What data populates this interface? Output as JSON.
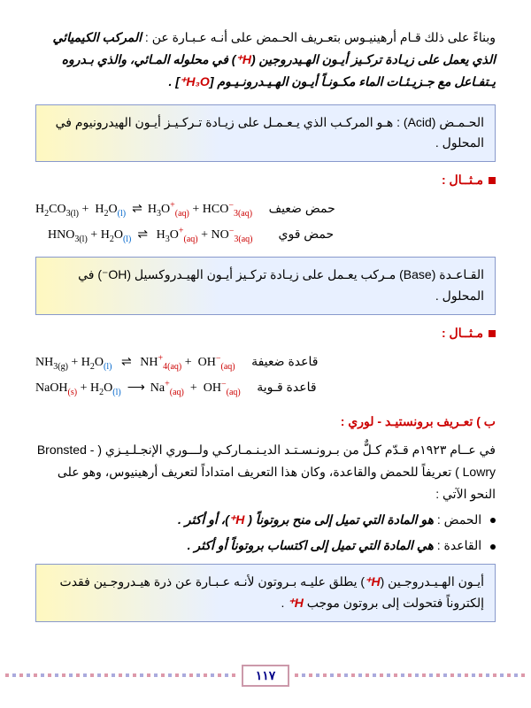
{
  "intro": {
    "line1_a": "وبناءً على ذلك قـام أرهينيـوس بتعـريف الحـمض على أنـه عـبـارة عن : ",
    "line1_b": "المركب الكيميائي الذي يعمل على زيـادة تركـيز أيـون الهـيدروجين (",
    "hplus": "H⁺",
    "line1_c": ") في محلوله المـائي، والذي بـدروه يـتفـاعل مع جـزيـئـات الماء مكـونـاً أيـون الهـيـدرونـيـوم [",
    "h3o": "H₃O⁺",
    "line1_d": "] ."
  },
  "def_acid": "الحـمـض (Acid) : هـو المركـب الذي يـعـمـل على زيـادة تـركـيـز أيـون الهيدرونيوم في المحلول .",
  "example_label": "مـثــال :",
  "eq1": {
    "lhs1": "H₂CO₃(l)",
    "plus": " + ",
    "lhs2": "H₂O(l)",
    "rhs1": "H₃O⁺",
    "rhs1_s": "(aq)",
    "rhs2": "HCO⁻₃",
    "rhs2_s": "(aq)",
    "label": "حمض ضعيف"
  },
  "eq2": {
    "lhs1": "HNO₃(l)",
    "lhs2": "H₂O(l)",
    "rhs1": "H₃O⁺",
    "rhs1_s": "(aq)",
    "rhs2": "NO⁻₃",
    "rhs2_s": "(aq)",
    "label": "حمض قوي"
  },
  "def_base": "القـاعـدة (Base) مـركب يعـمل على زيـادة تركـيز أيـون الهيـدروكسيل (OH⁻) في المحلول .",
  "eq3": {
    "lhs1": "NH₃(g)",
    "lhs2": "H₂O(l)",
    "rhs1": "NH₄⁺",
    "rhs1_s": "(aq)",
    "rhs2": "OH⁻",
    "rhs2_s": "(aq)",
    "label": "قاعدة ضعيفة"
  },
  "eq4": {
    "lhs1": "NaOH(s)",
    "lhs2": "H₂O(l)",
    "rhs1": "Na⁺",
    "rhs1_s": "(aq)",
    "rhs2": "OH⁻",
    "rhs2_s": "(aq)",
    "label": "قاعدة قـوية"
  },
  "section_b": "ب ) تعـريف برونستيـد - لوري :",
  "bronsted_p": "في عــام ١٩٢٣م قـدّم كـلٌّ من بـرونـسـتـد الديـنـمـاركـي ولـــوري الإنجـلـيـزي ( Bronsted - Lowry ) تعريفاً للحمض والقاعدة، وكان هذا التعريف امتداداً لتعريف أرهينيوس، وهو على النحو الآتي :",
  "acid_bullet_a": "الحمض : ",
  "acid_bullet_b": "هو  المادة التي تميل إلى منح بروتوناً ( ",
  "acid_bullet_c": ")، أو أكثر .",
  "base_bullet_a": "القاعدة : ",
  "base_bullet_b": "هي المادة التي تميل إلى اكتساب بروتوناً أو أكثر .",
  "proton_box_a": "أيـون الهـيـدروجـين (",
  "proton_box_b": ") يطلق عليـه بـروتون لأنـه عـبـارة عن ذرة هيـدروجـين فقدت إلكتروناً فتحولت إلى بروتون موجب ",
  "proton_box_c": " .",
  "eq_arrow": "⇌",
  "long_arrow": "⟶",
  "pagenum": "١١٧"
}
